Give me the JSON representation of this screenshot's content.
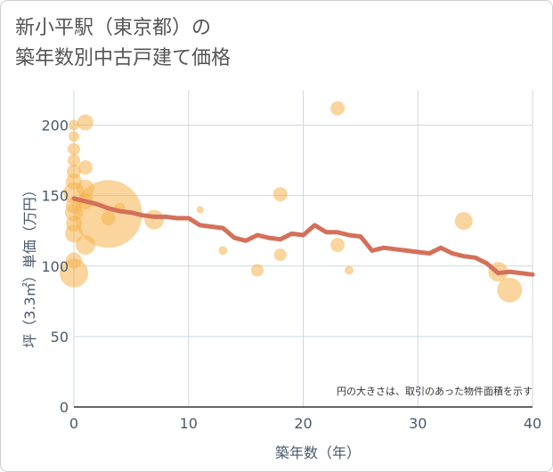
{
  "title_line1": "新小平駅（東京都）の",
  "title_line2": "築年数別中古戸建て価格",
  "note": "円の大きさは、取引のあった物件面積を示す",
  "colors": {
    "bubble_fill": "#f5b24c",
    "bubble_opacity": 0.55,
    "trend_line": "#d4705a",
    "grid": "#cdd9e0",
    "text": "#4a5a6a"
  },
  "chart_data": {
    "type": "scatter",
    "xlabel": "築年数（年）",
    "ylabel": "坪（3.3㎡）単価（万円）",
    "xlim": [
      0,
      40
    ],
    "ylim": [
      0,
      225
    ],
    "x_ticks": [
      0,
      10,
      20,
      30,
      40
    ],
    "y_ticks": [
      0,
      50,
      100,
      150,
      200
    ],
    "grid": true,
    "legend": "none",
    "bubbles": [
      {
        "x": 0,
        "y": 95,
        "size": 16
      },
      {
        "x": 0,
        "y": 104,
        "size": 9
      },
      {
        "x": 0,
        "y": 123,
        "size": 10
      },
      {
        "x": 0,
        "y": 130,
        "size": 9
      },
      {
        "x": 0,
        "y": 138,
        "size": 10
      },
      {
        "x": 0,
        "y": 143,
        "size": 9
      },
      {
        "x": 0,
        "y": 152,
        "size": 12
      },
      {
        "x": 0,
        "y": 160,
        "size": 9
      },
      {
        "x": 0,
        "y": 167,
        "size": 8
      },
      {
        "x": 0,
        "y": 175,
        "size": 7
      },
      {
        "x": 0,
        "y": 183,
        "size": 7
      },
      {
        "x": 0,
        "y": 192,
        "size": 6
      },
      {
        "x": 0,
        "y": 200,
        "size": 6
      },
      {
        "x": 1,
        "y": 202,
        "size": 9
      },
      {
        "x": 1,
        "y": 170,
        "size": 8
      },
      {
        "x": 1,
        "y": 155,
        "size": 10
      },
      {
        "x": 1,
        "y": 146,
        "size": 9
      },
      {
        "x": 1,
        "y": 115,
        "size": 11
      },
      {
        "x": 3,
        "y": 137,
        "size": 38
      },
      {
        "x": 3,
        "y": 134,
        "size": 8
      },
      {
        "x": 4,
        "y": 141,
        "size": 6
      },
      {
        "x": 7,
        "y": 133,
        "size": 11
      },
      {
        "x": 11,
        "y": 140,
        "size": 4
      },
      {
        "x": 13,
        "y": 111,
        "size": 5
      },
      {
        "x": 16,
        "y": 97,
        "size": 7
      },
      {
        "x": 18,
        "y": 151,
        "size": 8
      },
      {
        "x": 18,
        "y": 108,
        "size": 7
      },
      {
        "x": 23,
        "y": 212,
        "size": 8
      },
      {
        "x": 23,
        "y": 115,
        "size": 8
      },
      {
        "x": 24,
        "y": 97,
        "size": 5
      },
      {
        "x": 34,
        "y": 132,
        "size": 10
      },
      {
        "x": 37,
        "y": 96,
        "size": 11
      },
      {
        "x": 38,
        "y": 83,
        "size": 14
      }
    ],
    "trend": {
      "x": [
        0,
        1,
        2,
        3,
        4,
        5,
        6,
        7,
        8,
        9,
        10,
        11,
        12,
        13,
        14,
        15,
        16,
        17,
        18,
        19,
        20,
        21,
        22,
        23,
        24,
        25,
        26,
        27,
        28,
        29,
        30,
        31,
        32,
        33,
        34,
        35,
        36,
        37,
        38,
        39,
        40
      ],
      "y": [
        148,
        146,
        144,
        141,
        139,
        138,
        136,
        135,
        135,
        134,
        134,
        129,
        128,
        127,
        120,
        118,
        122,
        120,
        119,
        123,
        122,
        129,
        124,
        124,
        122,
        121,
        111,
        113,
        112,
        111,
        110,
        109,
        113,
        109,
        107,
        106,
        102,
        95,
        96,
        95,
        94
      ]
    }
  }
}
